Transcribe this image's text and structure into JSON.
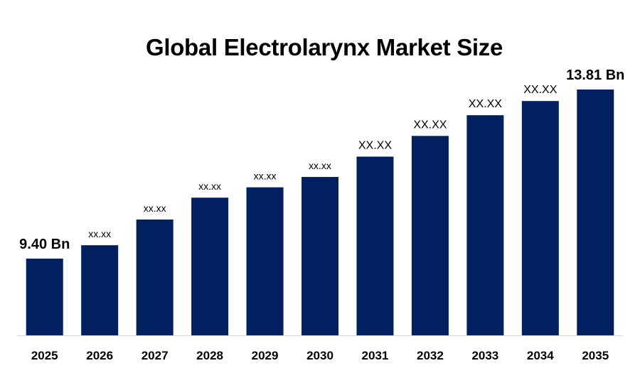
{
  "chart_data": {
    "type": "bar",
    "title": "Global Electrolarynx Market Size",
    "categories": [
      "2025",
      "2026",
      "2027",
      "2028",
      "2029",
      "2030",
      "2031",
      "2032",
      "2033",
      "2034",
      "2035"
    ],
    "values": [
      9.4,
      9.75,
      10.42,
      10.99,
      11.26,
      11.53,
      12.06,
      12.6,
      13.14,
      13.51,
      13.81
    ],
    "data_labels": [
      "9.40 Bn",
      "xx.xx",
      "xx.xx",
      "xx.xx",
      "xx.xx",
      "xx.xx",
      "XX.XX",
      "XX.XX",
      "XX.XX",
      "XX.XX",
      "13.81 Bn"
    ],
    "ylim": [
      7.4,
      14.6
    ],
    "xlabel": "",
    "ylabel": "",
    "bar_color": "#002060",
    "axis_color": "#d9d9d9",
    "grid": false,
    "legend": false
  }
}
